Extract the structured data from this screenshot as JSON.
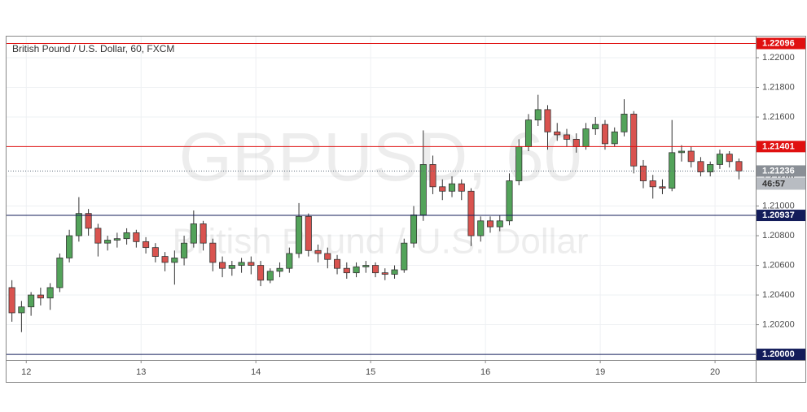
{
  "chart_data": {
    "type": "candlestick",
    "title": "British Pound / U.S. Dollar, 60, FXCM",
    "watermark": "GBPUSD, 60",
    "watermark_subtitle": "British Pound / U.S. Dollar",
    "up_color": "#53a35a",
    "down_color": "#d9534f",
    "xlim": [
      -4.3,
      152.5
    ],
    "xticks": [
      {
        "value": 0,
        "label": "12"
      },
      {
        "value": 24,
        "label": "13"
      },
      {
        "value": 48,
        "label": "14"
      },
      {
        "value": 72,
        "label": "15"
      },
      {
        "value": 96,
        "label": "16"
      },
      {
        "value": 120,
        "label": "19"
      },
      {
        "value": 144,
        "label": "20"
      }
    ],
    "ylim": [
      1.19962,
      1.22148
    ],
    "yticks": [
      {
        "value": 1.202,
        "label": "1.20200"
      },
      {
        "value": 1.204,
        "label": "1.20400"
      },
      {
        "value": 1.206,
        "label": "1.20600"
      },
      {
        "value": 1.208,
        "label": "1.20800"
      },
      {
        "value": 1.21,
        "label": "1.21000"
      },
      {
        "value": 1.212,
        "label": "1.21200"
      },
      {
        "value": 1.214,
        "label": "1.21400"
      },
      {
        "value": 1.216,
        "label": "1.21600"
      },
      {
        "value": 1.218,
        "label": "1.21800"
      },
      {
        "value": 1.22,
        "label": "1.22000"
      }
    ],
    "grid": true,
    "levels": [
      {
        "value": 1.22096,
        "label": "1.22096",
        "color": "#e01010"
      },
      {
        "value": 1.21401,
        "label": "1.21401",
        "color": "#e01010"
      },
      {
        "value": 1.20937,
        "label": "1.20937",
        "color": "#131c5a"
      },
      {
        "value": 1.2,
        "label": "1.20000",
        "color": "#131c5a"
      }
    ],
    "last": {
      "value": 1.21236,
      "label": "1.21236",
      "countdown": "46:57",
      "color": "#8a8f96"
    },
    "x": [
      -3,
      -1,
      1,
      3,
      5,
      7,
      9,
      11,
      13,
      15,
      17,
      19,
      21,
      23,
      25,
      27,
      29,
      31,
      33,
      35,
      37,
      39,
      41,
      43,
      45,
      47,
      49,
      51,
      53,
      55,
      57,
      59,
      61,
      63,
      65,
      67,
      69,
      71,
      73,
      75,
      77,
      79,
      81,
      83,
      85,
      87,
      89,
      91,
      93,
      95,
      97,
      99,
      101,
      103,
      105,
      107,
      109,
      111,
      113,
      115,
      117,
      119,
      121,
      123,
      125,
      127,
      129,
      131,
      133,
      135,
      137,
      139,
      141,
      143,
      145,
      147,
      149
    ],
    "ohlc": [
      [
        1.2045,
        1.205,
        1.2022,
        1.2028
      ],
      [
        1.2028,
        1.2036,
        1.2015,
        1.2032
      ],
      [
        1.2032,
        1.2042,
        1.2026,
        1.204
      ],
      [
        1.204,
        1.2045,
        1.2033,
        1.2038
      ],
      [
        1.2038,
        1.2048,
        1.203,
        1.2045
      ],
      [
        1.2045,
        1.2068,
        1.2042,
        1.2065
      ],
      [
        1.2065,
        1.2084,
        1.2062,
        1.208
      ],
      [
        1.208,
        1.2106,
        1.2076,
        1.2095
      ],
      [
        1.2095,
        1.2098,
        1.208,
        1.2085
      ],
      [
        1.2085,
        1.2088,
        1.2066,
        1.2075
      ],
      [
        1.2075,
        1.208,
        1.207,
        1.2077
      ],
      [
        1.2077,
        1.2082,
        1.2072,
        1.2078
      ],
      [
        1.2078,
        1.2085,
        1.2074,
        1.2082
      ],
      [
        1.2082,
        1.2084,
        1.2072,
        1.2076
      ],
      [
        1.2076,
        1.2079,
        1.2068,
        1.2072
      ],
      [
        1.2072,
        1.2075,
        1.2062,
        1.2066
      ],
      [
        1.2066,
        1.2069,
        1.2056,
        1.2062
      ],
      [
        1.2062,
        1.207,
        1.2047,
        1.2065
      ],
      [
        1.2065,
        1.208,
        1.206,
        1.2075
      ],
      [
        1.2075,
        1.2097,
        1.2072,
        1.2088
      ],
      [
        1.2088,
        1.209,
        1.207,
        1.2075
      ],
      [
        1.2075,
        1.2078,
        1.2056,
        1.2062
      ],
      [
        1.2062,
        1.2066,
        1.2052,
        1.2058
      ],
      [
        1.2058,
        1.2063,
        1.2053,
        1.206
      ],
      [
        1.206,
        1.2065,
        1.2055,
        1.2062
      ],
      [
        1.2062,
        1.2066,
        1.2054,
        1.206
      ],
      [
        1.206,
        1.2063,
        1.2046,
        1.205
      ],
      [
        1.205,
        1.2058,
        1.2048,
        1.2056
      ],
      [
        1.2056,
        1.2062,
        1.2052,
        1.2058
      ],
      [
        1.2058,
        1.2072,
        1.2055,
        1.2068
      ],
      [
        1.2068,
        1.2102,
        1.2065,
        1.2093
      ],
      [
        1.2093,
        1.2095,
        1.2066,
        1.207
      ],
      [
        1.207,
        1.2074,
        1.2062,
        1.2068
      ],
      [
        1.2068,
        1.2072,
        1.2058,
        1.2064
      ],
      [
        1.2064,
        1.2067,
        1.2054,
        1.2058
      ],
      [
        1.2058,
        1.2062,
        1.2051,
        1.2055
      ],
      [
        1.2055,
        1.2062,
        1.2052,
        1.2059
      ],
      [
        1.2059,
        1.2063,
        1.2055,
        1.206
      ],
      [
        1.206,
        1.2062,
        1.2052,
        1.2055
      ],
      [
        1.2055,
        1.2058,
        1.205,
        1.2054
      ],
      [
        1.2054,
        1.206,
        1.2051,
        1.2057
      ],
      [
        1.2057,
        1.2078,
        1.2055,
        1.2075
      ],
      [
        1.2075,
        1.21,
        1.2072,
        1.2094
      ],
      [
        1.2094,
        1.2151,
        1.209,
        1.2128
      ],
      [
        1.2128,
        1.2134,
        1.2108,
        1.2113
      ],
      [
        1.2113,
        1.2118,
        1.2104,
        1.211
      ],
      [
        1.211,
        1.212,
        1.2106,
        1.2115
      ],
      [
        1.2115,
        1.2118,
        1.2104,
        1.211
      ],
      [
        1.211,
        1.2112,
        1.2073,
        1.208
      ],
      [
        1.208,
        1.2093,
        1.2076,
        1.209
      ],
      [
        1.209,
        1.2093,
        1.2082,
        1.2086
      ],
      [
        1.2086,
        1.2094,
        1.2083,
        1.209
      ],
      [
        1.209,
        1.2122,
        1.2087,
        1.2117
      ],
      [
        1.2117,
        1.2145,
        1.2114,
        1.214
      ],
      [
        1.214,
        1.2162,
        1.2137,
        1.2158
      ],
      [
        1.2158,
        1.2175,
        1.2154,
        1.2165
      ],
      [
        1.2165,
        1.2168,
        1.2138,
        1.215
      ],
      [
        1.215,
        1.2156,
        1.2144,
        1.2148
      ],
      [
        1.2148,
        1.2152,
        1.214,
        1.2145
      ],
      [
        1.2145,
        1.2149,
        1.2136,
        1.214
      ],
      [
        1.214,
        1.2156,
        1.2138,
        1.2152
      ],
      [
        1.2152,
        1.216,
        1.2148,
        1.2155
      ],
      [
        1.2155,
        1.2158,
        1.2138,
        1.2142
      ],
      [
        1.2142,
        1.2153,
        1.214,
        1.215
      ],
      [
        1.215,
        1.2172,
        1.2147,
        1.2162
      ],
      [
        1.2162,
        1.2164,
        1.2122,
        1.2127
      ],
      [
        1.2127,
        1.2131,
        1.2112,
        1.2117
      ],
      [
        1.2117,
        1.2121,
        1.2105,
        1.2113
      ],
      [
        1.2113,
        1.2118,
        1.2108,
        1.2112
      ],
      [
        1.2112,
        1.2158,
        1.211,
        1.2136
      ],
      [
        1.2136,
        1.2141,
        1.213,
        1.2137
      ],
      [
        1.2137,
        1.214,
        1.2126,
        1.213
      ],
      [
        1.213,
        1.2133,
        1.212,
        1.2123
      ],
      [
        1.2123,
        1.213,
        1.212,
        1.2128
      ],
      [
        1.2128,
        1.2138,
        1.2125,
        1.2135
      ],
      [
        1.2135,
        1.2137,
        1.2126,
        1.213
      ],
      [
        1.213,
        1.2132,
        1.2118,
        1.21236
      ]
    ]
  }
}
